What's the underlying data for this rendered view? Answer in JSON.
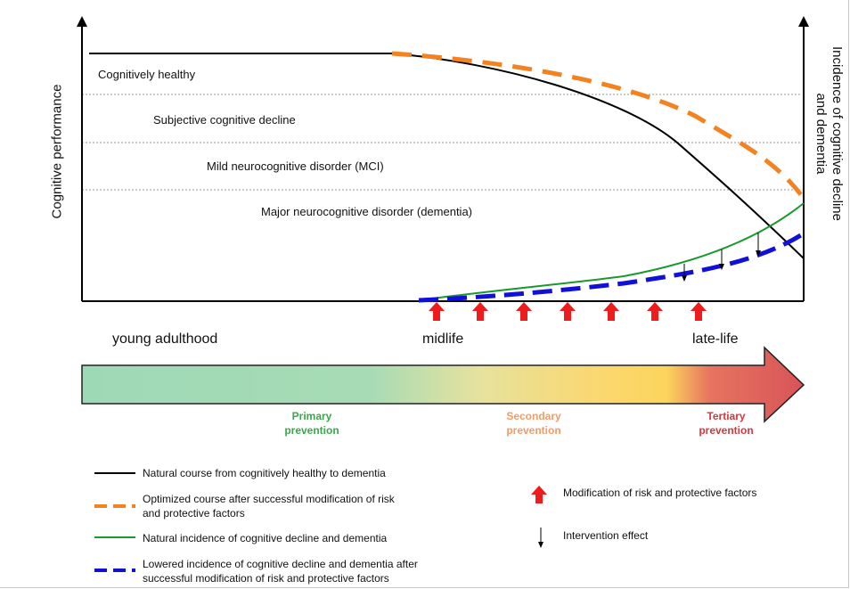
{
  "axes": {
    "y_left_label": "Cognitive performance",
    "y_right_label_line1": "Incidence of cognitive decline",
    "y_right_label_line2": "and dementia"
  },
  "stages": [
    "Cognitively healthy",
    "Subjective cognitive decline",
    "Mild neurocognitive disorder (MCI)",
    "Major neurocognitive disorder (dementia)"
  ],
  "timeline": {
    "young": "young adulthood",
    "mid": "midlife",
    "late": "late-life"
  },
  "prevention": {
    "primary": "Primary\nprevention",
    "secondary": "Secondary\nprevention",
    "tertiary": "Tertiary\nprevention"
  },
  "legend": {
    "natural_course": "Natural course from cognitively healthy to dementia",
    "optimized_course": "Optimized course after successful modification of risk\nand protective factors",
    "natural_incidence": "Natural incidence of cognitive decline and dementia",
    "lowered_incidence": "Lowered incidence of cognitive decline and dementia after\nsuccessful modification of risk and protective factors",
    "modification": "Modification of risk and protective factors",
    "intervention": "Intervention effect"
  },
  "colors": {
    "natural_course": "#000000",
    "optimized_course": "#f58220",
    "natural_incidence": "#1a9a2a",
    "lowered_incidence": "#1010d8",
    "arrow_red": "#ee1c1c",
    "primary": "#3aa84a",
    "secondary": "#f59a66",
    "tertiary": "#d0393e"
  }
}
